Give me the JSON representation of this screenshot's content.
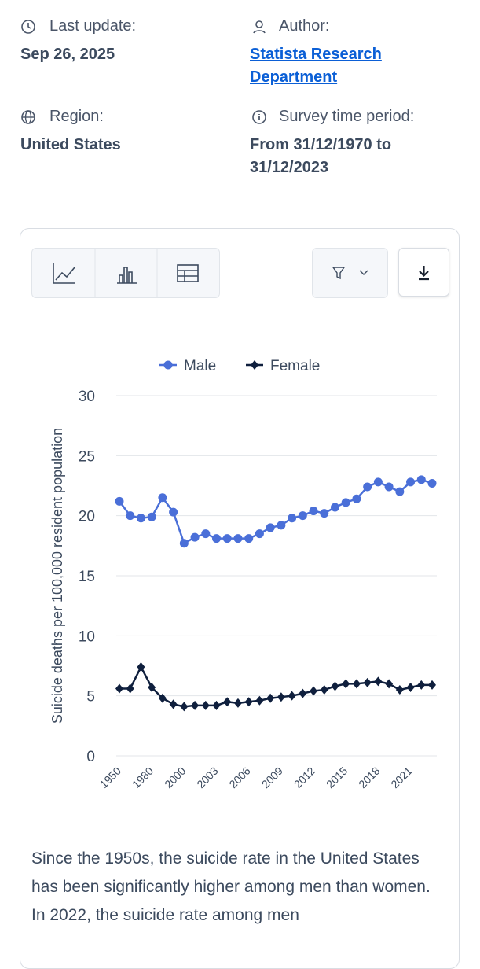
{
  "header": {
    "last_update_label": "Last update:",
    "last_update": "Sep 26, 2025",
    "author_label": "Author:",
    "author": "Statista Research Department",
    "region_label": "Region:",
    "region": "United States",
    "survey_label": "Survey time period:",
    "survey_period": "From 31/12/1970 to 31/12/2023"
  },
  "chart_data": {
    "type": "line",
    "y_label": "Suicide deaths per 100,000 resident population",
    "categories": [
      "1950",
      null,
      null,
      "1980",
      null,
      null,
      "2000",
      null,
      null,
      "2003",
      null,
      null,
      "2006",
      null,
      null,
      "2009",
      null,
      null,
      "2012",
      null,
      null,
      "2015",
      null,
      null,
      "2018",
      null,
      null,
      "2021",
      null,
      null
    ],
    "series": [
      {
        "name": "Male",
        "color": "#4a6fd8",
        "marker": "circle",
        "values": [
          21.2,
          20.0,
          19.8,
          19.9,
          21.5,
          20.3,
          17.7,
          18.2,
          18.5,
          18.1,
          18.1,
          18.1,
          18.1,
          18.5,
          19.0,
          19.2,
          19.8,
          20.0,
          20.4,
          20.2,
          20.7,
          21.1,
          21.4,
          22.4,
          22.8,
          22.4,
          22.0,
          22.8,
          23.0,
          22.7
        ]
      },
      {
        "name": "Female",
        "color": "#0f1f3d",
        "marker": "diamond",
        "values": [
          5.6,
          5.6,
          7.4,
          5.7,
          4.8,
          4.3,
          4.1,
          4.2,
          4.2,
          4.2,
          4.5,
          4.4,
          4.5,
          4.6,
          4.8,
          4.9,
          5.0,
          5.2,
          5.4,
          5.5,
          5.8,
          6.0,
          6.0,
          6.1,
          6.2,
          6.0,
          5.5,
          5.7,
          5.9,
          5.9
        ]
      }
    ],
    "ylim": [
      0,
      30
    ],
    "yticks": [
      0,
      5,
      10,
      15,
      20,
      25,
      30
    ],
    "grid": true,
    "legend": "top"
  },
  "description": "Since the 1950s, the suicide rate in the United States has been significantly higher among men than women. In 2022, the suicide rate among men"
}
